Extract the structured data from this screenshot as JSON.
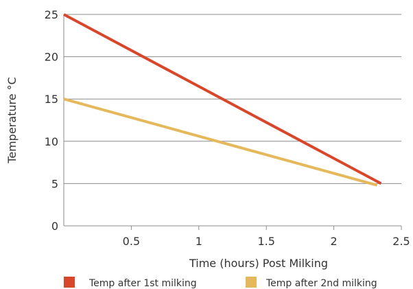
{
  "chart_data": {
    "type": "line",
    "title": "",
    "xlabel": "Time (hours) Post Milking",
    "ylabel": "Temperature °C",
    "xlim": [
      0,
      2.5
    ],
    "ylim": [
      0,
      25
    ],
    "xticks": [
      0.5,
      1,
      1.5,
      2,
      2.5
    ],
    "xtick_labels": [
      "0.5",
      "1",
      "1.5",
      "2",
      "2.5"
    ],
    "yticks": [
      0,
      5,
      10,
      15,
      20,
      25
    ],
    "ytick_labels": [
      "0",
      "5",
      "10",
      "15",
      "20",
      "25"
    ],
    "grid": "horizontal",
    "legend_position": "bottom",
    "series": [
      {
        "name": "Temp after 1st milking",
        "color": "#d9472b",
        "x": [
          0,
          2.35
        ],
        "y": [
          25,
          5
        ]
      },
      {
        "name": "Temp after 2nd milking",
        "color": "#e6b85c",
        "x": [
          0,
          2.32
        ],
        "y": [
          15,
          4.8
        ]
      }
    ]
  }
}
